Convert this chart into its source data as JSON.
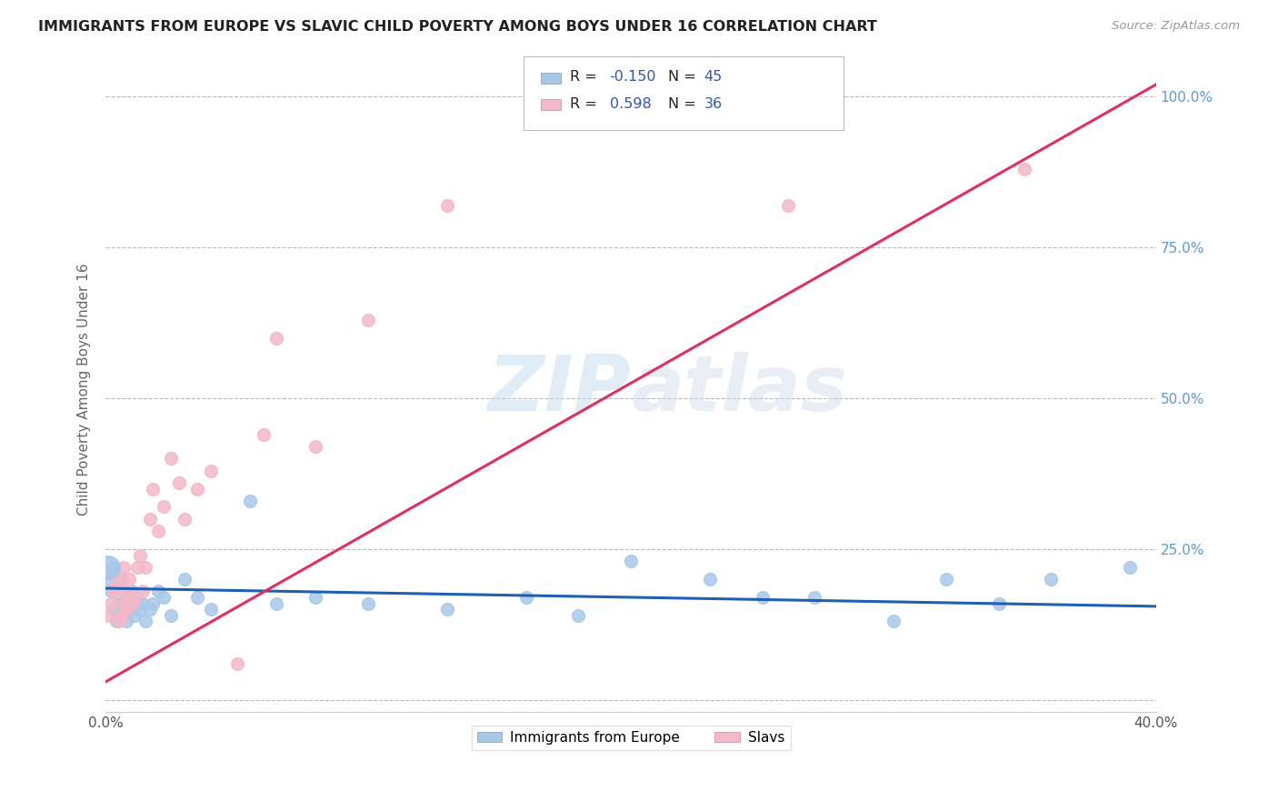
{
  "title": "IMMIGRANTS FROM EUROPE VS SLAVIC CHILD POVERTY AMONG BOYS UNDER 16 CORRELATION CHART",
  "source": "Source: ZipAtlas.com",
  "ylabel": "Child Poverty Among Boys Under 16",
  "xlim": [
    0.0,
    0.4
  ],
  "ylim": [
    -0.02,
    1.05
  ],
  "xticks": [
    0.0,
    0.1,
    0.2,
    0.3,
    0.4
  ],
  "xtick_labels": [
    "0.0%",
    "",
    "",
    "",
    "40.0%"
  ],
  "ytick_labels": [
    "",
    "25.0%",
    "50.0%",
    "75.0%",
    "100.0%"
  ],
  "yticks": [
    0.0,
    0.25,
    0.5,
    0.75,
    1.0
  ],
  "series1_label": "Immigrants from Europe",
  "series2_label": "Slavs",
  "series1_R": "-0.150",
  "series1_N": "45",
  "series2_R": "0.598",
  "series2_N": "36",
  "series1_color": "#a8c8e8",
  "series2_color": "#f4b8c8",
  "series1_line_color": "#2060b0",
  "series2_line_color": "#e03060",
  "background_color": "#ffffff",
  "series1_x": [
    0.001,
    0.002,
    0.003,
    0.003,
    0.004,
    0.004,
    0.005,
    0.005,
    0.006,
    0.007,
    0.007,
    0.008,
    0.008,
    0.009,
    0.01,
    0.01,
    0.011,
    0.012,
    0.013,
    0.014,
    0.015,
    0.017,
    0.018,
    0.02,
    0.022,
    0.025,
    0.03,
    0.035,
    0.04,
    0.055,
    0.065,
    0.08,
    0.1,
    0.13,
    0.16,
    0.18,
    0.2,
    0.23,
    0.25,
    0.27,
    0.3,
    0.32,
    0.34,
    0.36,
    0.39
  ],
  "series1_y": [
    0.2,
    0.18,
    0.22,
    0.15,
    0.18,
    0.13,
    0.2,
    0.16,
    0.18,
    0.14,
    0.17,
    0.16,
    0.13,
    0.15,
    0.16,
    0.18,
    0.14,
    0.17,
    0.15,
    0.16,
    0.13,
    0.15,
    0.16,
    0.18,
    0.17,
    0.14,
    0.2,
    0.17,
    0.15,
    0.33,
    0.16,
    0.17,
    0.16,
    0.15,
    0.17,
    0.14,
    0.23,
    0.2,
    0.17,
    0.17,
    0.13,
    0.2,
    0.16,
    0.2,
    0.22
  ],
  "series2_x": [
    0.001,
    0.002,
    0.003,
    0.004,
    0.005,
    0.005,
    0.006,
    0.006,
    0.007,
    0.007,
    0.008,
    0.008,
    0.009,
    0.01,
    0.011,
    0.012,
    0.013,
    0.014,
    0.015,
    0.017,
    0.018,
    0.02,
    0.022,
    0.025,
    0.028,
    0.03,
    0.035,
    0.04,
    0.05,
    0.06,
    0.065,
    0.08,
    0.1,
    0.13,
    0.26,
    0.35
  ],
  "series2_y": [
    0.14,
    0.16,
    0.18,
    0.2,
    0.18,
    0.13,
    0.2,
    0.14,
    0.16,
    0.22,
    0.18,
    0.15,
    0.2,
    0.16,
    0.17,
    0.22,
    0.24,
    0.18,
    0.22,
    0.3,
    0.35,
    0.28,
    0.32,
    0.4,
    0.36,
    0.3,
    0.35,
    0.38,
    0.06,
    0.44,
    0.6,
    0.42,
    0.63,
    0.82,
    0.82,
    0.88
  ],
  "series1_line_x": [
    0.0,
    0.4
  ],
  "series1_line_y": [
    0.185,
    0.155
  ],
  "series2_line_x": [
    0.0,
    0.4
  ],
  "series2_line_y": [
    0.03,
    1.02
  ]
}
